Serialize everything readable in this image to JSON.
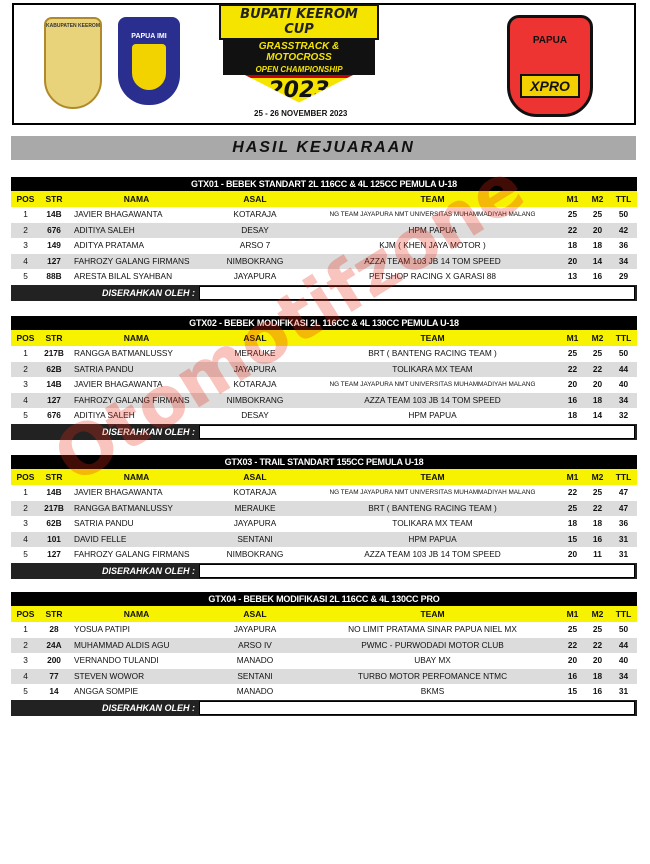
{
  "banner": {
    "left_logo_1_text": "KABUPATEN KEEROM",
    "left_logo_2_text": "PAPUA IMI",
    "event_line1": "BUPATI KEEROM CUP",
    "event_line2": "GRASSTRACK & MOTOCROSS",
    "event_line3": "OPEN CHAMPIONSHIP",
    "event_year": "2023",
    "date": "25 - 26 NOVEMBER 2023",
    "right_logo_top": "PAPUA",
    "right_logo_bottom": "XPRO"
  },
  "section_title": "HASIL KEJUARAAN",
  "watermark": "Otomotifzone",
  "columns": [
    "POS",
    "STR",
    "NAMA",
    "ASAL",
    "TEAM",
    "M1",
    "M2",
    "TTL"
  ],
  "sign_label": "DISERAHKAN OLEH :",
  "colors": {
    "header_row": "#f7f200",
    "caption": "#000000",
    "alt_row": "#dcdcdc",
    "section_bar": "#a9a9a9"
  },
  "classes": [
    {
      "title": "GTX01 - BEBEK STANDART 2L 116CC & 4L 125CC PEMULA U-18",
      "rows": [
        [
          "1",
          "14B",
          "JAVIER BHAGAWANTA",
          "KOTARAJA",
          "NG TEAM JAYAPURA NMT UNIVERSITAS MUHAMMADIYAH MALANG",
          "25",
          "25",
          "50"
        ],
        [
          "2",
          "676",
          "ADITIYA SALEH",
          "DESAY",
          "HPM PAPUA",
          "22",
          "20",
          "42"
        ],
        [
          "3",
          "149",
          "ADITYA PRATAMA",
          "ARSO 7",
          "KJM ( KHEN JAYA MOTOR )",
          "18",
          "18",
          "36"
        ],
        [
          "4",
          "127",
          "FAHROZY GALANG FIRMANS",
          "NIMBOKRANG",
          "AZZA TEAM 103 JB 14 TOM SPEED",
          "20",
          "14",
          "34"
        ],
        [
          "5",
          "88B",
          "ARESTA BILAL SYAHBAN",
          "JAYAPURA",
          "PETSHOP RACING X GARASI 88",
          "13",
          "16",
          "29"
        ]
      ]
    },
    {
      "title": "GTX02 - BEBEK MODIFIKASI 2L 116CC & 4L 130CC PEMULA U-18",
      "rows": [
        [
          "1",
          "217B",
          "RANGGA BATMANLUSSY",
          "MERAUKE",
          "BRT ( BANTENG RACING TEAM )",
          "25",
          "25",
          "50"
        ],
        [
          "2",
          "62B",
          "SATRIA PANDU",
          "JAYAPURA",
          "TOLIKARA MX TEAM",
          "22",
          "22",
          "44"
        ],
        [
          "3",
          "14B",
          "JAVIER BHAGAWANTA",
          "KOTARAJA",
          "NG TEAM JAYAPURA NMT UNIVERSITAS MUHAMMADIYAH MALANG",
          "20",
          "20",
          "40"
        ],
        [
          "4",
          "127",
          "FAHROZY GALANG FIRMANS",
          "NIMBOKRANG",
          "AZZA TEAM 103 JB 14 TOM SPEED",
          "16",
          "18",
          "34"
        ],
        [
          "5",
          "676",
          "ADITIYA SALEH",
          "DESAY",
          "HPM PAPUA",
          "18",
          "14",
          "32"
        ]
      ]
    },
    {
      "title": "GTX03 - TRAIL STANDART 155CC PEMULA U-18",
      "rows": [
        [
          "1",
          "14B",
          "JAVIER BHAGAWANTA",
          "KOTARAJA",
          "NG TEAM JAYAPURA NMT UNIVERSITAS MUHAMMADIYAH MALANG",
          "22",
          "25",
          "47"
        ],
        [
          "2",
          "217B",
          "RANGGA BATMANLUSSY",
          "MERAUKE",
          "BRT ( BANTENG RACING TEAM )",
          "25",
          "22",
          "47"
        ],
        [
          "3",
          "62B",
          "SATRIA PANDU",
          "JAYAPURA",
          "TOLIKARA MX TEAM",
          "18",
          "18",
          "36"
        ],
        [
          "4",
          "101",
          "DAVID FELLE",
          "SENTANI",
          "HPM PAPUA",
          "15",
          "16",
          "31"
        ],
        [
          "5",
          "127",
          "FAHROZY GALANG FIRMANS",
          "NIMBOKRANG",
          "AZZA TEAM 103 JB 14 TOM SPEED",
          "20",
          "11",
          "31"
        ]
      ]
    },
    {
      "title": "GTX04 - BEBEK MODIFIKASI 2L 116CC & 4L 130CC PRO",
      "rows": [
        [
          "1",
          "28",
          "YOSUA PATIPI",
          "JAYAPURA",
          "NO LIMIT PRATAMA SINAR PAPUA NIEL MX",
          "25",
          "25",
          "50"
        ],
        [
          "2",
          "24A",
          "MUHAMMAD ALDIS AGU",
          "ARSO IV",
          "PWMC - PURWODADI MOTOR CLUB",
          "22",
          "22",
          "44"
        ],
        [
          "3",
          "200",
          "VERNANDO TULANDI",
          "MANADO",
          "UBAY MX",
          "20",
          "20",
          "40"
        ],
        [
          "4",
          "77",
          "STEVEN WOWOR",
          "SENTANI",
          "TURBO MOTOR PERFOMANCE NTMC",
          "16",
          "18",
          "34"
        ],
        [
          "5",
          "14",
          "ANGGA SOMPIE",
          "MANADO",
          "BKMS",
          "15",
          "16",
          "31"
        ]
      ]
    }
  ]
}
